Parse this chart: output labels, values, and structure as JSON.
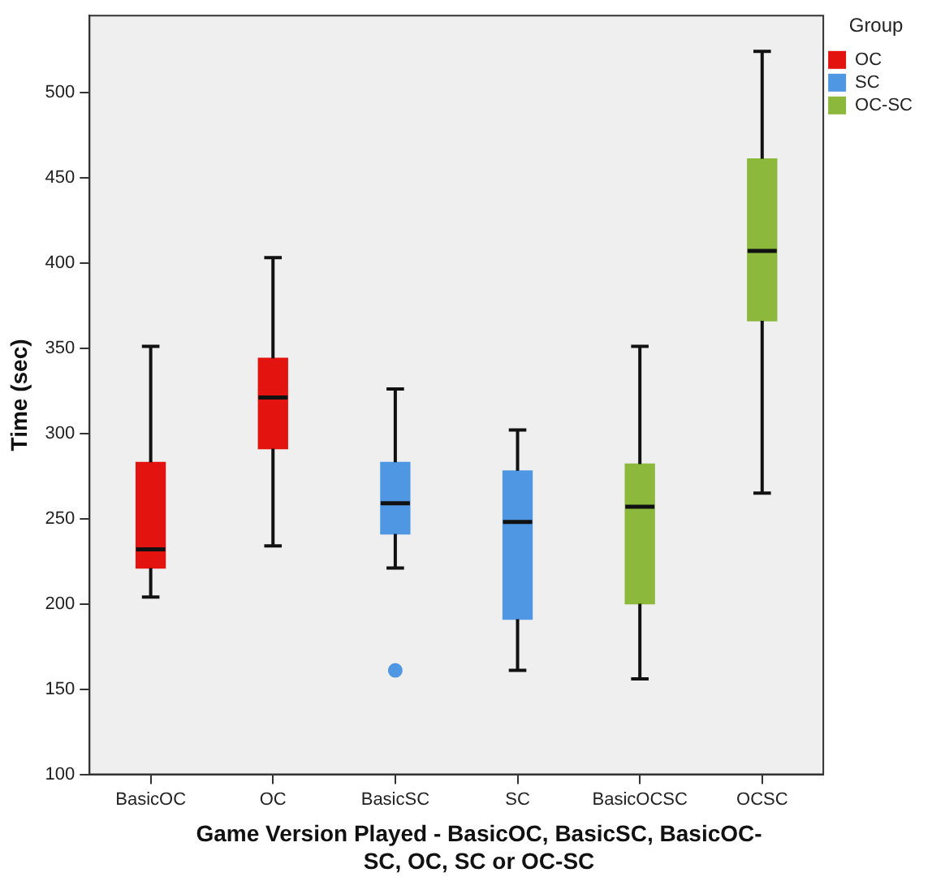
{
  "chart_data": {
    "type": "box",
    "xlabel": "Game Version Played - BasicOC, BasicSC, BasicOC-SC, OC, SC or OC-SC",
    "ylabel": "Time (sec)",
    "legend_title": "Group",
    "legend": "right",
    "categories": [
      "BasicOC",
      "OC",
      "BasicSC",
      "SC",
      "BasicOCSC",
      "OCSC"
    ],
    "ylim": [
      100,
      545
    ],
    "yticks": [
      100,
      150,
      200,
      250,
      300,
      350,
      400,
      450,
      500
    ],
    "series": [
      {
        "name": "OC",
        "color": "#e3140f",
        "boxes": [
          {
            "low": 204,
            "q1": 221,
            "median": 232,
            "q3": 283,
            "high": 351
          },
          {
            "low": 234,
            "q1": 291,
            "median": 321,
            "q3": 344,
            "high": 403
          },
          null,
          null,
          null,
          null
        ]
      },
      {
        "name": "SC",
        "color": "#4f97e3",
        "boxes": [
          null,
          null,
          {
            "low": 221,
            "q1": 241,
            "median": 259,
            "q3": 283,
            "high": 326,
            "outliers": [
              161
            ]
          },
          {
            "low": 161,
            "q1": 191,
            "median": 248,
            "q3": 278,
            "high": 302
          },
          null,
          null
        ]
      },
      {
        "name": "OC-SC",
        "color": "#8cb83c",
        "boxes": [
          null,
          null,
          null,
          null,
          {
            "low": 156,
            "q1": 200,
            "median": 257,
            "q3": 282,
            "high": 351
          },
          {
            "low": 265,
            "q1": 366,
            "median": 407,
            "q3": 461,
            "high": 524
          }
        ]
      }
    ]
  }
}
